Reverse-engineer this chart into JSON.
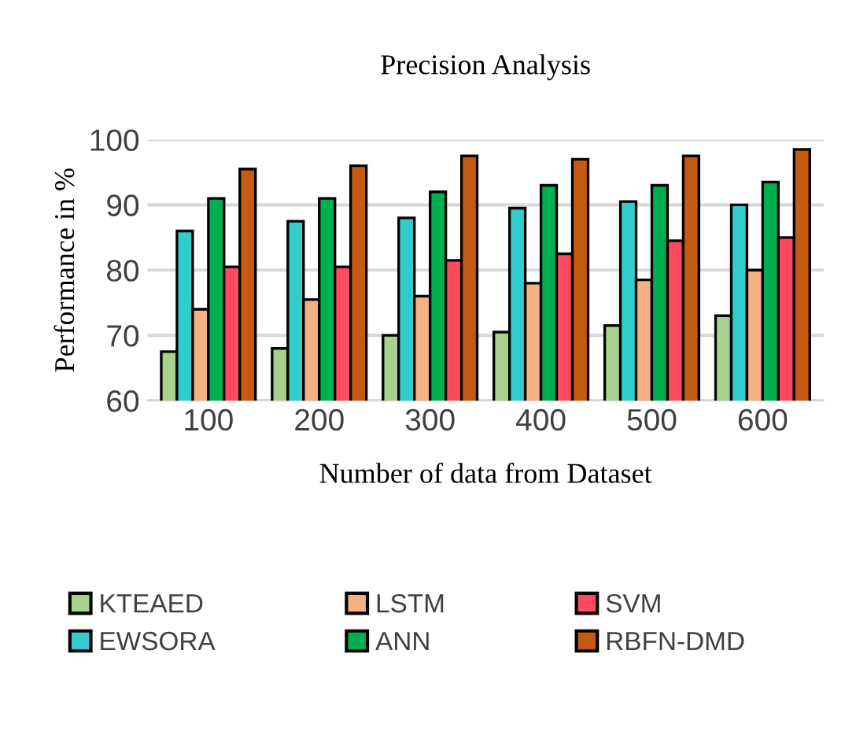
{
  "chart_data": {
    "type": "bar",
    "title": "Precision Analysis",
    "xlabel": "Number of data from Dataset",
    "ylabel": "Performance in %",
    "categories": [
      "100",
      "200",
      "300",
      "400",
      "500",
      "600"
    ],
    "series": [
      {
        "name": "KTEAED",
        "color": "#a9d18e",
        "values": [
          67.5,
          68,
          70,
          70.5,
          71.5,
          73
        ]
      },
      {
        "name": "EWSORA",
        "color": "#33cccc",
        "values": [
          86,
          87.5,
          88,
          89.5,
          90.5,
          90
        ]
      },
      {
        "name": "LSTM",
        "color": "#f4b183",
        "values": [
          74,
          75.5,
          76,
          78,
          78.5,
          80
        ]
      },
      {
        "name": "ANN",
        "color": "#00b050",
        "values": [
          91,
          91,
          92,
          93,
          93,
          93.5
        ]
      },
      {
        "name": "SVM",
        "color": "#ff4b5f",
        "values": [
          80.5,
          80.5,
          81.5,
          82.5,
          84.5,
          85
        ]
      },
      {
        "name": "RBFN-DMD",
        "color": "#c55a11",
        "values": [
          95.5,
          96,
          97.5,
          97,
          97.5,
          98.5
        ]
      }
    ],
    "ylim": [
      60,
      100
    ],
    "yticks": [
      60,
      70,
      80,
      90,
      100
    ],
    "grid": "y",
    "legend": "bottom"
  }
}
